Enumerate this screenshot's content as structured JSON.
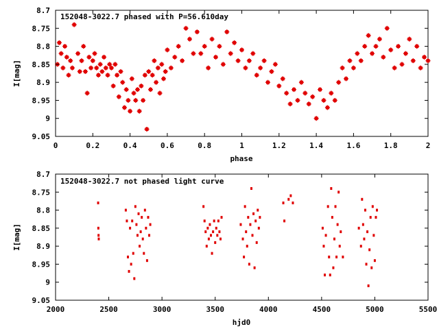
{
  "colors": {
    "points": "#e00000",
    "frame": "#000000",
    "background": "#ffffff"
  },
  "chart_data": [
    {
      "type": "scatter",
      "title": "152048-3022.7 phased with P=56.610day",
      "xlabel": "phase",
      "ylabel": "I[mag]",
      "xlim": [
        0,
        2
      ],
      "ylim": [
        9.05,
        8.7
      ],
      "y_inverted": true,
      "x_ticks": [
        "0",
        "0.2",
        "0.4",
        "0.6",
        "0.8",
        "1",
        "1.2",
        "1.4",
        "1.6",
        "1.8",
        "2"
      ],
      "y_ticks": [
        "8.7",
        "8.75",
        "8.8",
        "8.85",
        "8.9",
        "8.95",
        "9",
        "9.05"
      ],
      "grid": false,
      "marker": "star",
      "series": [
        {
          "points": [
            [
              0.01,
              8.85
            ],
            [
              0.02,
              8.79
            ],
            [
              0.03,
              8.82
            ],
            [
              0.04,
              8.86
            ],
            [
              0.05,
              8.8
            ],
            [
              0.06,
              8.83
            ],
            [
              0.07,
              8.88
            ],
            [
              0.08,
              8.84
            ],
            [
              0.09,
              8.86
            ],
            [
              0.1,
              8.74
            ],
            [
              0.12,
              8.82
            ],
            [
              0.13,
              8.87
            ],
            [
              0.14,
              8.84
            ],
            [
              0.15,
              8.8
            ],
            [
              0.16,
              8.87
            ],
            [
              0.17,
              8.93
            ],
            [
              0.18,
              8.83
            ],
            [
              0.19,
              8.86
            ],
            [
              0.2,
              8.84
            ],
            [
              0.21,
              8.82
            ],
            [
              0.22,
              8.86
            ],
            [
              0.23,
              8.88
            ],
            [
              0.24,
              8.85
            ],
            [
              0.25,
              8.87
            ],
            [
              0.26,
              8.83
            ],
            [
              0.27,
              8.86
            ],
            [
              0.28,
              8.88
            ],
            [
              0.29,
              8.85
            ],
            [
              0.3,
              8.86
            ],
            [
              0.31,
              8.91
            ],
            [
              0.32,
              8.85
            ],
            [
              0.33,
              8.88
            ],
            [
              0.34,
              8.94
            ],
            [
              0.35,
              8.87
            ],
            [
              0.36,
              8.9
            ],
            [
              0.37,
              8.97
            ],
            [
              0.38,
              8.92
            ],
            [
              0.39,
              8.95
            ],
            [
              0.4,
              8.98
            ],
            [
              0.41,
              8.89
            ],
            [
              0.42,
              8.93
            ],
            [
              0.43,
              8.95
            ],
            [
              0.44,
              8.92
            ],
            [
              0.45,
              8.98
            ],
            [
              0.46,
              8.91
            ],
            [
              0.47,
              8.95
            ],
            [
              0.48,
              8.88
            ],
            [
              0.49,
              9.03
            ],
            [
              0.5,
              8.87
            ],
            [
              0.51,
              8.92
            ],
            [
              0.52,
              8.88
            ],
            [
              0.53,
              8.84
            ],
            [
              0.54,
              8.9
            ],
            [
              0.55,
              8.86
            ],
            [
              0.56,
              8.93
            ],
            [
              0.57,
              8.85
            ],
            [
              0.58,
              8.89
            ],
            [
              0.59,
              8.87
            ],
            [
              0.6,
              8.81
            ],
            [
              0.62,
              8.86
            ],
            [
              0.64,
              8.83
            ],
            [
              0.66,
              8.8
            ],
            [
              0.68,
              8.84
            ],
            [
              0.7,
              8.75
            ],
            [
              0.72,
              8.78
            ],
            [
              0.74,
              8.82
            ],
            [
              0.76,
              8.76
            ],
            [
              0.78,
              8.82
            ],
            [
              0.8,
              8.8
            ],
            [
              0.82,
              8.86
            ],
            [
              0.84,
              8.78
            ],
            [
              0.86,
              8.83
            ],
            [
              0.88,
              8.8
            ],
            [
              0.9,
              8.85
            ],
            [
              0.92,
              8.76
            ],
            [
              0.94,
              8.82
            ],
            [
              0.96,
              8.79
            ],
            [
              0.98,
              8.84
            ],
            [
              1.0,
              8.81
            ],
            [
              1.02,
              8.86
            ],
            [
              1.04,
              8.84
            ],
            [
              1.06,
              8.82
            ],
            [
              1.08,
              8.88
            ],
            [
              1.1,
              8.86
            ],
            [
              1.12,
              8.84
            ],
            [
              1.14,
              8.9
            ],
            [
              1.16,
              8.87
            ],
            [
              1.18,
              8.85
            ],
            [
              1.2,
              8.91
            ],
            [
              1.22,
              8.89
            ],
            [
              1.24,
              8.93
            ],
            [
              1.26,
              8.96
            ],
            [
              1.28,
              8.92
            ],
            [
              1.3,
              8.95
            ],
            [
              1.32,
              8.9
            ],
            [
              1.34,
              8.93
            ],
            [
              1.36,
              8.96
            ],
            [
              1.38,
              8.94
            ],
            [
              1.4,
              9.0
            ],
            [
              1.42,
              8.92
            ],
            [
              1.44,
              8.95
            ],
            [
              1.46,
              8.97
            ],
            [
              1.48,
              8.93
            ],
            [
              1.5,
              8.95
            ],
            [
              1.52,
              8.9
            ],
            [
              1.54,
              8.86
            ],
            [
              1.56,
              8.89
            ],
            [
              1.58,
              8.84
            ],
            [
              1.6,
              8.86
            ],
            [
              1.62,
              8.82
            ],
            [
              1.64,
              8.84
            ],
            [
              1.66,
              8.8
            ],
            [
              1.68,
              8.77
            ],
            [
              1.7,
              8.82
            ],
            [
              1.72,
              8.8
            ],
            [
              1.74,
              8.78
            ],
            [
              1.76,
              8.83
            ],
            [
              1.78,
              8.75
            ],
            [
              1.8,
              8.81
            ],
            [
              1.82,
              8.86
            ],
            [
              1.84,
              8.8
            ],
            [
              1.86,
              8.85
            ],
            [
              1.88,
              8.82
            ],
            [
              1.9,
              8.78
            ],
            [
              1.92,
              8.84
            ],
            [
              1.94,
              8.8
            ],
            [
              1.96,
              8.86
            ],
            [
              1.98,
              8.83
            ],
            [
              2.0,
              8.84
            ]
          ]
        }
      ]
    },
    {
      "type": "scatter",
      "title": "152048-3022.7 not phased light curve",
      "xlabel": "hjd0",
      "ylabel": "I[mag]",
      "xlim": [
        2000,
        5500
      ],
      "ylim": [
        9.05,
        8.7
      ],
      "y_inverted": true,
      "x_ticks": [
        "2000",
        "2500",
        "3000",
        "3500",
        "4000",
        "4500",
        "5000",
        "5500"
      ],
      "y_ticks": [
        "8.7",
        "8.75",
        "8.8",
        "8.85",
        "8.9",
        "8.95",
        "9",
        "9.05"
      ],
      "grid": false,
      "marker": "dot",
      "series": [
        {
          "points": [
            [
              2400,
              8.78
            ],
            [
              2402,
              8.85
            ],
            [
              2404,
              8.87
            ],
            [
              2406,
              8.88
            ],
            [
              2660,
              8.8
            ],
            [
              2670,
              8.83
            ],
            [
              2680,
              8.93
            ],
            [
              2690,
              8.97
            ],
            [
              2700,
              8.85
            ],
            [
              2710,
              8.95
            ],
            [
              2720,
              8.83
            ],
            [
              2730,
              8.92
            ],
            [
              2740,
              8.99
            ],
            [
              2750,
              8.79
            ],
            [
              2760,
              8.84
            ],
            [
              2770,
              8.87
            ],
            [
              2780,
              8.81
            ],
            [
              2790,
              8.9
            ],
            [
              2800,
              8.86
            ],
            [
              2810,
              8.82
            ],
            [
              2820,
              8.88
            ],
            [
              2830,
              8.92
            ],
            [
              2840,
              8.8
            ],
            [
              2850,
              8.85
            ],
            [
              2860,
              8.94
            ],
            [
              2870,
              8.82
            ],
            [
              2880,
              8.87
            ],
            [
              2890,
              8.84
            ],
            [
              3390,
              8.79
            ],
            [
              3400,
              8.83
            ],
            [
              3410,
              8.86
            ],
            [
              3420,
              8.9
            ],
            [
              3430,
              8.85
            ],
            [
              3440,
              8.88
            ],
            [
              3450,
              8.84
            ],
            [
              3460,
              8.87
            ],
            [
              3470,
              8.92
            ],
            [
              3480,
              8.86
            ],
            [
              3490,
              8.83
            ],
            [
              3500,
              8.89
            ],
            [
              3510,
              8.85
            ],
            [
              3520,
              8.87
            ],
            [
              3530,
              8.83
            ],
            [
              3540,
              8.86
            ],
            [
              3550,
              8.88
            ],
            [
              3560,
              8.82
            ],
            [
              3740,
              8.84
            ],
            [
              3760,
              8.88
            ],
            [
              3770,
              8.93
            ],
            [
              3780,
              8.79
            ],
            [
              3790,
              8.86
            ],
            [
              3800,
              8.9
            ],
            [
              3810,
              8.82
            ],
            [
              3820,
              8.95
            ],
            [
              3830,
              8.84
            ],
            [
              3840,
              8.74
            ],
            [
              3850,
              8.87
            ],
            [
              3860,
              8.81
            ],
            [
              3870,
              8.96
            ],
            [
              3880,
              8.83
            ],
            [
              3890,
              8.89
            ],
            [
              3900,
              8.8
            ],
            [
              3910,
              8.85
            ],
            [
              3920,
              8.82
            ],
            [
              4140,
              8.78
            ],
            [
              4150,
              8.83
            ],
            [
              4190,
              8.77
            ],
            [
              4210,
              8.76
            ],
            [
              4230,
              8.78
            ],
            [
              4510,
              8.85
            ],
            [
              4520,
              8.9
            ],
            [
              4530,
              8.98
            ],
            [
              4540,
              8.87
            ],
            [
              4560,
              8.79
            ],
            [
              4570,
              8.93
            ],
            [
              4580,
              8.98
            ],
            [
              4590,
              8.74
            ],
            [
              4600,
              8.82
            ],
            [
              4610,
              8.96
            ],
            [
              4620,
              8.88
            ],
            [
              4630,
              8.79
            ],
            [
              4640,
              8.93
            ],
            [
              4650,
              8.84
            ],
            [
              4660,
              8.75
            ],
            [
              4670,
              8.9
            ],
            [
              4680,
              8.86
            ],
            [
              4700,
              8.93
            ],
            [
              4850,
              8.85
            ],
            [
              4870,
              8.9
            ],
            [
              4880,
              8.77
            ],
            [
              4890,
              8.84
            ],
            [
              4900,
              8.88
            ],
            [
              4910,
              8.8
            ],
            [
              4920,
              8.95
            ],
            [
              4930,
              8.86
            ],
            [
              4940,
              9.01
            ],
            [
              4950,
              8.91
            ],
            [
              4960,
              8.82
            ],
            [
              4970,
              8.96
            ],
            [
              4980,
              8.79
            ],
            [
              4990,
              8.87
            ],
            [
              5000,
              8.94
            ],
            [
              5010,
              8.82
            ],
            [
              5020,
              8.8
            ]
          ]
        }
      ]
    }
  ]
}
